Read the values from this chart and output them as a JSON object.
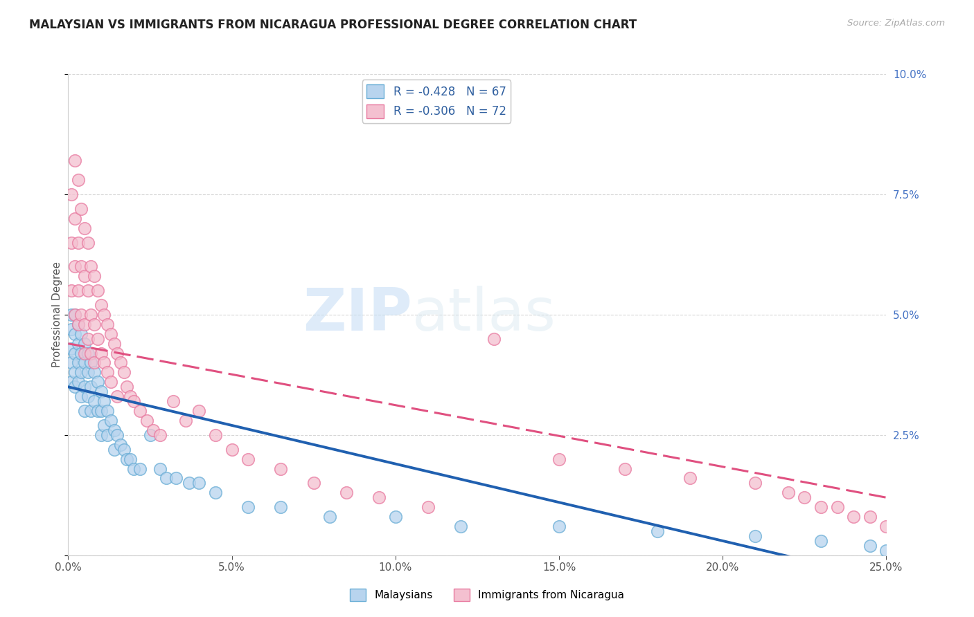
{
  "title": "MALAYSIAN VS IMMIGRANTS FROM NICARAGUA PROFESSIONAL DEGREE CORRELATION CHART",
  "source_text": "Source: ZipAtlas.com",
  "ylabel": "Professional Degree",
  "xlim": [
    0.0,
    0.25
  ],
  "ylim": [
    0.0,
    0.1
  ],
  "xticks": [
    0.0,
    0.05,
    0.1,
    0.15,
    0.2,
    0.25
  ],
  "yticks": [
    0.0,
    0.025,
    0.05,
    0.075,
    0.1
  ],
  "xticklabels": [
    "0.0%",
    "5.0%",
    "10.0%",
    "15.0%",
    "20.0%",
    "25.0%"
  ],
  "yticklabels": [
    "",
    "2.5%",
    "5.0%",
    "7.5%",
    "10.0%"
  ],
  "legend_entries": [
    {
      "label": "R = -0.428   N = 67",
      "facecolor": "#b8d4ee"
    },
    {
      "label": "R = -0.306   N = 72",
      "facecolor": "#f4c0d0"
    }
  ],
  "legend_bottom": [
    "Malaysians",
    "Immigrants from Nicaragua"
  ],
  "watermark_zip": "ZIP",
  "watermark_atlas": "atlas",
  "blue_face": "#b8d4ee",
  "blue_edge": "#6aaed6",
  "pink_face": "#f4c0d0",
  "pink_edge": "#e87aa0",
  "blue_line_color": "#2060b0",
  "pink_line_color": "#e05080",
  "blue_line_start_y": 0.035,
  "blue_line_end_y": -0.005,
  "pink_line_start_y": 0.044,
  "pink_line_end_y": 0.012,
  "malaysians_x": [
    0.001,
    0.001,
    0.001,
    0.001,
    0.001,
    0.002,
    0.002,
    0.002,
    0.002,
    0.002,
    0.003,
    0.003,
    0.003,
    0.003,
    0.004,
    0.004,
    0.004,
    0.004,
    0.005,
    0.005,
    0.005,
    0.005,
    0.006,
    0.006,
    0.006,
    0.007,
    0.007,
    0.007,
    0.008,
    0.008,
    0.009,
    0.009,
    0.01,
    0.01,
    0.01,
    0.011,
    0.011,
    0.012,
    0.012,
    0.013,
    0.014,
    0.014,
    0.015,
    0.016,
    0.017,
    0.018,
    0.019,
    0.02,
    0.022,
    0.025,
    0.028,
    0.03,
    0.033,
    0.037,
    0.04,
    0.045,
    0.055,
    0.065,
    0.08,
    0.1,
    0.12,
    0.15,
    0.18,
    0.21,
    0.23,
    0.245,
    0.25
  ],
  "malaysians_y": [
    0.05,
    0.047,
    0.043,
    0.04,
    0.036,
    0.05,
    0.046,
    0.042,
    0.038,
    0.035,
    0.048,
    0.044,
    0.04,
    0.036,
    0.046,
    0.042,
    0.038,
    0.033,
    0.044,
    0.04,
    0.035,
    0.03,
    0.042,
    0.038,
    0.033,
    0.04,
    0.035,
    0.03,
    0.038,
    0.032,
    0.036,
    0.03,
    0.034,
    0.03,
    0.025,
    0.032,
    0.027,
    0.03,
    0.025,
    0.028,
    0.026,
    0.022,
    0.025,
    0.023,
    0.022,
    0.02,
    0.02,
    0.018,
    0.018,
    0.025,
    0.018,
    0.016,
    0.016,
    0.015,
    0.015,
    0.013,
    0.01,
    0.01,
    0.008,
    0.008,
    0.006,
    0.006,
    0.005,
    0.004,
    0.003,
    0.002,
    0.001
  ],
  "nicaragua_x": [
    0.001,
    0.001,
    0.001,
    0.002,
    0.002,
    0.002,
    0.002,
    0.003,
    0.003,
    0.003,
    0.003,
    0.004,
    0.004,
    0.004,
    0.005,
    0.005,
    0.005,
    0.005,
    0.006,
    0.006,
    0.006,
    0.007,
    0.007,
    0.007,
    0.008,
    0.008,
    0.008,
    0.009,
    0.009,
    0.01,
    0.01,
    0.011,
    0.011,
    0.012,
    0.012,
    0.013,
    0.013,
    0.014,
    0.015,
    0.015,
    0.016,
    0.017,
    0.018,
    0.019,
    0.02,
    0.022,
    0.024,
    0.026,
    0.028,
    0.032,
    0.036,
    0.04,
    0.045,
    0.05,
    0.055,
    0.065,
    0.075,
    0.085,
    0.095,
    0.11,
    0.13,
    0.15,
    0.17,
    0.19,
    0.21,
    0.22,
    0.225,
    0.23,
    0.235,
    0.24,
    0.245,
    0.25
  ],
  "nicaragua_y": [
    0.075,
    0.065,
    0.055,
    0.082,
    0.07,
    0.06,
    0.05,
    0.078,
    0.065,
    0.055,
    0.048,
    0.072,
    0.06,
    0.05,
    0.068,
    0.058,
    0.048,
    0.042,
    0.065,
    0.055,
    0.045,
    0.06,
    0.05,
    0.042,
    0.058,
    0.048,
    0.04,
    0.055,
    0.045,
    0.052,
    0.042,
    0.05,
    0.04,
    0.048,
    0.038,
    0.046,
    0.036,
    0.044,
    0.042,
    0.033,
    0.04,
    0.038,
    0.035,
    0.033,
    0.032,
    0.03,
    0.028,
    0.026,
    0.025,
    0.032,
    0.028,
    0.03,
    0.025,
    0.022,
    0.02,
    0.018,
    0.015,
    0.013,
    0.012,
    0.01,
    0.045,
    0.02,
    0.018,
    0.016,
    0.015,
    0.013,
    0.012,
    0.01,
    0.01,
    0.008,
    0.008,
    0.006
  ]
}
